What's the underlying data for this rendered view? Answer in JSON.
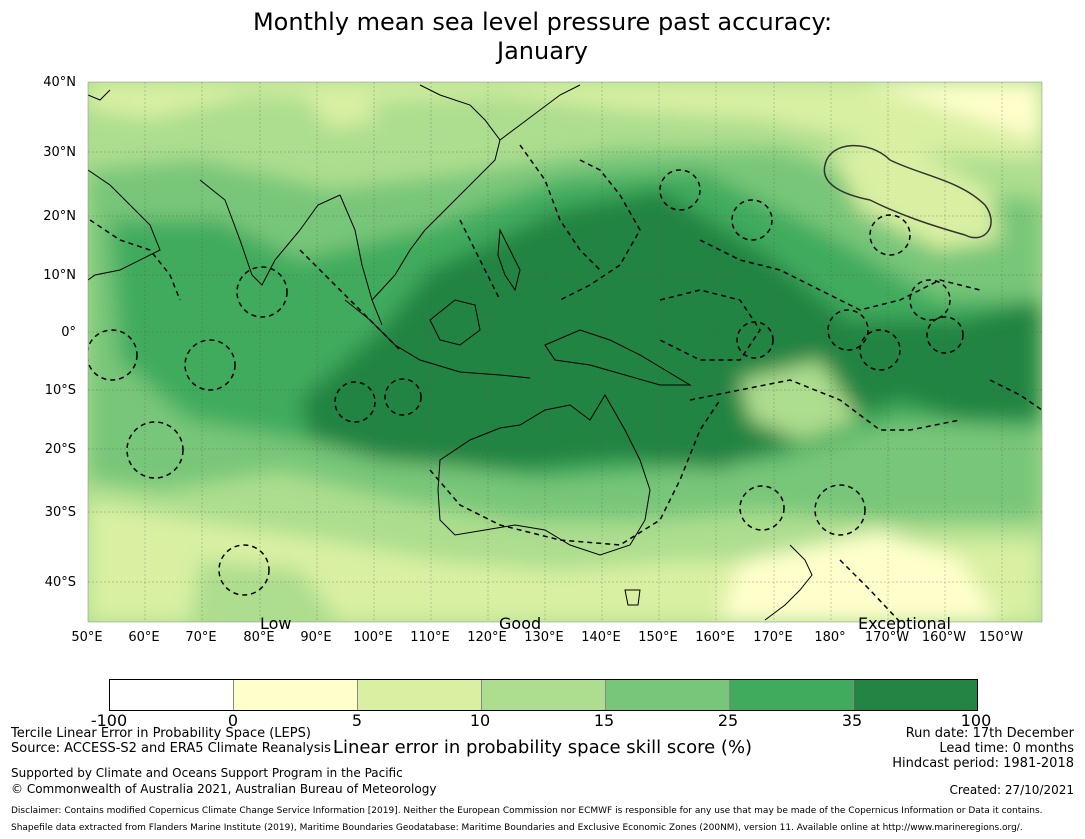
{
  "title": {
    "line1": "Monthly mean sea level pressure past accuracy:",
    "line2": "January"
  },
  "map": {
    "lat_labels": [
      "40°N",
      "30°N",
      "20°N",
      "10°N",
      "0°",
      "10°S",
      "20°S",
      "30°S",
      "40°S"
    ],
    "lon_labels": [
      "50°E",
      "60°E",
      "70°E",
      "80°E",
      "90°E",
      "100°E",
      "110°E",
      "120°E",
      "130°E",
      "140°E",
      "150°E",
      "160°E",
      "170°E",
      "180°",
      "170°W",
      "160°W",
      "150°W"
    ],
    "category_labels": [
      "Low",
      "Good",
      "Exceptional"
    ]
  },
  "colorbar": {
    "ticks": [
      "-100",
      "0",
      "5",
      "10",
      "15",
      "25",
      "35",
      "100"
    ],
    "colors": [
      "#ffffff",
      "#ffffcc",
      "#d9f0a3",
      "#addd8e",
      "#78c679",
      "#41ab5d",
      "#238443"
    ],
    "label": "Linear error in probability space skill score (%)"
  },
  "footer": {
    "left_line1": "Tercile Linear Error in Probability Space (LEPS)",
    "left_line2": "Source: ACCESS-S2 and ERA5 Climate Reanalysis",
    "support_line1": "Supported by Climate and Oceans Support Program in the Pacific",
    "support_line2": "© Commonwealth of Australia 2021, Australian Bureau of Meteorology",
    "run_date": "Run date: 17th December",
    "lead_time": "Lead time: 0 months",
    "hindcast": "Hindcast period: 1981-2018",
    "created": "Created: 27/10/2021",
    "disclaimer1": "Disclaimer: Contains modified Copernicus Climate Change Service Information [2019]. Neither the European Commission nor ECMWF is responsible for any use that may be made of the Copernicus Information or Data it contains.",
    "disclaimer2": "Shapefile data extracted from Flanders Marine Institute (2019), Maritime Boundaries Geodatabase: Maritime Boundaries and Exclusive Economic Zones (200NM), version 11. Available online at http://www.marineregions.org/."
  }
}
